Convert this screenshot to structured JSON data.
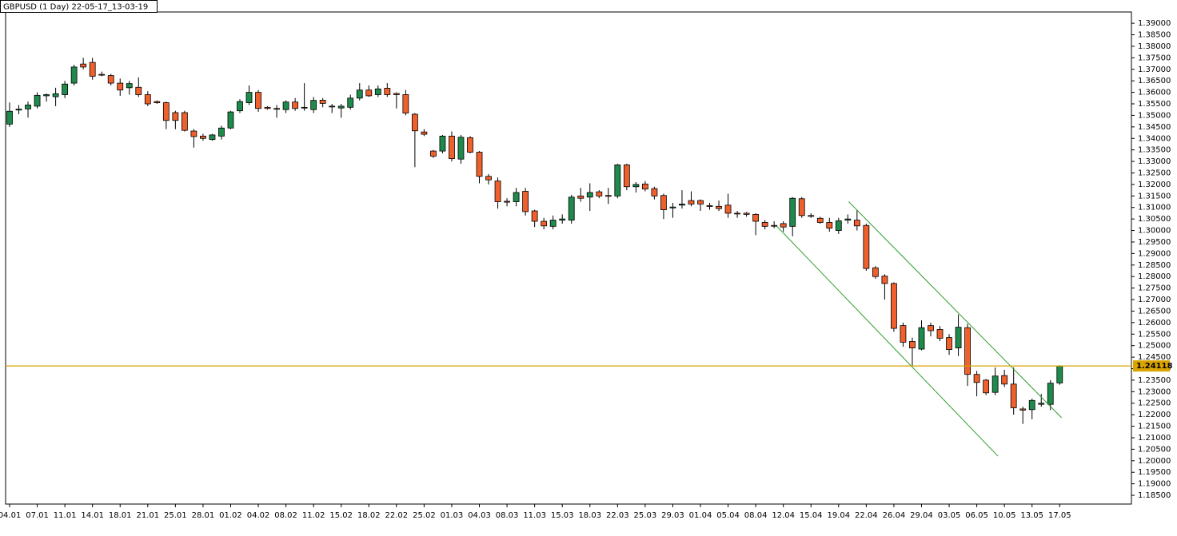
{
  "chart_data": {
    "type": "candlestick",
    "title": "GBPUSD (1 Day) 22-05-17_13-03-19",
    "categories": [
      "04.01",
      null,
      null,
      "07.01",
      null,
      null,
      "11.01",
      null,
      null,
      "14.01",
      null,
      null,
      "18.01",
      null,
      null,
      "21.01",
      null,
      null,
      "25.01",
      null,
      null,
      "28.01",
      null,
      null,
      "01.02",
      null,
      null,
      "04.02",
      null,
      null,
      "08.02",
      null,
      null,
      "11.02",
      null,
      null,
      "15.02",
      null,
      null,
      "18.02",
      null,
      null,
      "22.02",
      null,
      null,
      "25.02",
      null,
      null,
      "01.03",
      null,
      null,
      "04.03",
      null,
      null,
      "08.03",
      null,
      null,
      "11.03",
      null,
      null,
      "15.03",
      null,
      null,
      "18.03",
      null,
      null,
      "22.03",
      null,
      null,
      "25.03",
      null,
      null,
      "29.03",
      null,
      null,
      "01.04",
      null,
      null,
      "05.04",
      null,
      null,
      "08.04",
      null,
      null,
      "12.04",
      null,
      null,
      "15.04",
      null,
      null,
      "19.04",
      null,
      null,
      "22.04",
      null,
      null,
      "26.04",
      null,
      null,
      "29.04",
      null,
      null,
      "03.05",
      null,
      null,
      "06.05",
      null,
      null,
      "10.05",
      null,
      null,
      "13.05",
      null,
      null,
      "17.05"
    ],
    "open": [
      1.3462,
      1.3523,
      1.3528,
      1.354,
      1.3585,
      1.3581,
      1.359,
      1.364,
      1.3723,
      1.373,
      1.3678,
      1.3673,
      1.364,
      1.362,
      1.3622,
      1.359,
      1.356,
      1.3555,
      1.3512,
      1.3512,
      1.3432,
      1.341,
      1.3395,
      1.341,
      1.3445,
      1.352,
      1.3555,
      1.36,
      1.3535,
      1.353,
      1.3525,
      1.3558,
      1.3533,
      1.3525,
      1.3566,
      1.3538,
      1.3532,
      1.3535,
      1.3575,
      1.361,
      1.359,
      1.3618,
      1.3595,
      1.359,
      1.3505,
      1.3428,
      1.3345,
      1.3345,
      1.341,
      1.331,
      1.3403,
      1.334,
      1.3235,
      1.3215,
      1.3127,
      1.3125,
      1.317,
      1.3085,
      1.304,
      1.3018,
      1.3045,
      1.3045,
      1.315,
      1.3145,
      1.3168,
      1.3152,
      1.315,
      1.3285,
      1.319,
      1.3202,
      1.3182,
      1.3152,
      1.3098,
      1.311,
      1.313,
      1.313,
      1.3108,
      1.3105,
      1.311,
      1.3075,
      1.3075,
      1.307,
      1.3035,
      1.3022,
      1.303,
      1.3018,
      1.3138,
      1.3065,
      1.3053,
      1.3035,
      1.3,
      1.3045,
      1.3045,
      1.3022,
      1.2838,
      1.2802,
      1.277,
      1.2587,
      1.2518,
      1.2485,
      1.2587,
      1.257,
      1.2535,
      1.249,
      1.2578,
      1.2375,
      1.235,
      1.2297,
      1.237,
      1.2333,
      1.2225,
      1.2222,
      1.2245,
      1.2245,
      1.2338
    ],
    "high": [
      1.3556,
      1.3545,
      1.356,
      1.36,
      1.3595,
      1.362,
      1.365,
      1.372,
      1.375,
      1.375,
      1.369,
      1.368,
      1.366,
      1.365,
      1.3665,
      1.3605,
      1.3565,
      1.356,
      1.352,
      1.352,
      1.344,
      1.342,
      1.342,
      1.3455,
      1.352,
      1.357,
      1.363,
      1.361,
      1.354,
      1.3545,
      1.3565,
      1.3575,
      1.364,
      1.358,
      1.3575,
      1.355,
      1.355,
      1.359,
      1.364,
      1.363,
      1.363,
      1.364,
      1.36,
      1.361,
      1.351,
      1.344,
      1.335,
      1.3415,
      1.343,
      1.3415,
      1.341,
      1.3345,
      1.3245,
      1.323,
      1.314,
      1.3185,
      1.3185,
      1.309,
      1.3055,
      1.3065,
      1.307,
      1.3155,
      1.3185,
      1.3205,
      1.3175,
      1.3185,
      1.329,
      1.329,
      1.321,
      1.3215,
      1.319,
      1.316,
      1.312,
      1.3175,
      1.317,
      1.3135,
      1.312,
      1.313,
      1.316,
      1.3085,
      1.308,
      1.3075,
      1.3045,
      1.304,
      1.304,
      1.3145,
      1.3145,
      1.3075,
      1.306,
      1.3055,
      1.3055,
      1.307,
      1.309,
      1.303,
      1.2845,
      1.281,
      1.2775,
      1.26,
      1.2535,
      1.261,
      1.26,
      1.2585,
      1.255,
      1.2635,
      1.2595,
      1.239,
      1.2355,
      1.2405,
      1.2395,
      1.2405,
      1.2235,
      1.227,
      1.229,
      1.235,
      1.2415
    ],
    "low": [
      1.345,
      1.3505,
      1.349,
      1.353,
      1.356,
      1.354,
      1.3575,
      1.363,
      1.37,
      1.3655,
      1.367,
      1.363,
      1.3585,
      1.359,
      1.358,
      1.354,
      1.355,
      1.344,
      1.344,
      1.343,
      1.336,
      1.339,
      1.339,
      1.3395,
      1.344,
      1.351,
      1.3545,
      1.3515,
      1.3525,
      1.349,
      1.351,
      1.352,
      1.352,
      1.351,
      1.3535,
      1.351,
      1.349,
      1.3525,
      1.3565,
      1.358,
      1.358,
      1.358,
      1.353,
      1.35,
      1.3275,
      1.341,
      1.3315,
      1.3335,
      1.33,
      1.329,
      1.3335,
      1.3205,
      1.32,
      1.3095,
      1.3105,
      1.3105,
      1.3065,
      1.3015,
      1.3005,
      1.3005,
      1.303,
      1.303,
      1.3125,
      1.3085,
      1.314,
      1.3115,
      1.314,
      1.3175,
      1.3165,
      1.317,
      1.3135,
      1.305,
      1.3055,
      1.3095,
      1.3105,
      1.3085,
      1.309,
      1.3085,
      1.3055,
      1.3055,
      1.306,
      1.298,
      1.3005,
      1.301,
      1.2995,
      1.2975,
      1.3055,
      1.3055,
      1.303,
      1.2995,
      1.2985,
      1.303,
      1.3,
      1.2825,
      1.279,
      1.27,
      1.256,
      1.2495,
      1.241,
      1.248,
      1.254,
      1.252,
      1.246,
      1.2455,
      1.2325,
      1.228,
      1.2285,
      1.2285,
      1.232,
      1.22,
      1.216,
      1.218,
      1.2235,
      1.222,
      1.233
    ],
    "close": [
      1.3518,
      1.3527,
      1.3545,
      1.3587,
      1.359,
      1.3594,
      1.3636,
      1.371,
      1.371,
      1.367,
      1.3676,
      1.364,
      1.361,
      1.3638,
      1.359,
      1.355,
      1.3555,
      1.3478,
      1.3478,
      1.3435,
      1.3408,
      1.34,
      1.3415,
      1.3445,
      1.3515,
      1.356,
      1.36,
      1.353,
      1.353,
      1.3528,
      1.3558,
      1.353,
      1.3535,
      1.3565,
      1.3552,
      1.354,
      1.354,
      1.3575,
      1.361,
      1.3585,
      1.3615,
      1.359,
      1.359,
      1.351,
      1.3433,
      1.3418,
      1.3323,
      1.341,
      1.3312,
      1.3405,
      1.334,
      1.3235,
      1.322,
      1.3125,
      1.3123,
      1.3165,
      1.3082,
      1.304,
      1.302,
      1.3045,
      1.305,
      1.3145,
      1.314,
      1.3165,
      1.315,
      1.315,
      1.3285,
      1.319,
      1.32,
      1.318,
      1.315,
      1.309,
      1.3102,
      1.3115,
      1.3115,
      1.3115,
      1.3105,
      1.3095,
      1.3075,
      1.3072,
      1.307,
      1.304,
      1.3018,
      1.302,
      1.3015,
      1.314,
      1.3065,
      1.3063,
      1.3035,
      1.301,
      1.3042,
      1.305,
      1.302,
      1.2835,
      1.28,
      1.277,
      1.2575,
      1.2515,
      1.249,
      1.2578,
      1.2565,
      1.2532,
      1.2483,
      1.258,
      1.2375,
      1.234,
      1.2295,
      1.2368,
      1.2333,
      1.223,
      1.222,
      1.2262,
      1.225,
      1.2337,
      1.2412
    ],
    "up_color": "#1e8a4c",
    "down_color": "#f0602c",
    "current_price": 1.24118,
    "current_price_color": "#d9a400",
    "trendline_color": "#2e9e2e",
    "trendlines": [
      {
        "x": [
          91.1,
          114.2
        ],
        "y": [
          1.3125,
          1.2187
        ]
      },
      {
        "x": [
          83.3,
          107.3
        ],
        "y": [
          1.3018,
          1.202
        ]
      }
    ],
    "ylim": [
      1.1812,
      1.3949
    ],
    "yticks": [
      {
        "value": 1.185,
        "label": "1.18500"
      },
      {
        "value": 1.19,
        "label": "1.19000"
      },
      {
        "value": 1.195,
        "label": "1.19500"
      },
      {
        "value": 1.2,
        "label": "1.20000"
      },
      {
        "value": 1.205,
        "label": "1.20500"
      },
      {
        "value": 1.21,
        "label": "1.21000"
      },
      {
        "value": 1.215,
        "label": "1.21500"
      },
      {
        "value": 1.22,
        "label": "1.22000"
      },
      {
        "value": 1.225,
        "label": "1.22500"
      },
      {
        "value": 1.23,
        "label": "1.23000"
      },
      {
        "value": 1.235,
        "label": "1.23500"
      },
      {
        "value": 1.24,
        "label": "1.24000"
      },
      {
        "value": 1.245,
        "label": "1.24500"
      },
      {
        "value": 1.25,
        "label": "1.25000"
      },
      {
        "value": 1.255,
        "label": "1.25500"
      },
      {
        "value": 1.26,
        "label": "1.26000"
      },
      {
        "value": 1.265,
        "label": "1.26500"
      },
      {
        "value": 1.27,
        "label": "1.27000"
      },
      {
        "value": 1.275,
        "label": "1.27500"
      },
      {
        "value": 1.28,
        "label": "1.28000"
      },
      {
        "value": 1.285,
        "label": "1.28500"
      },
      {
        "value": 1.29,
        "label": "1.29000"
      },
      {
        "value": 1.295,
        "label": "1.29500"
      },
      {
        "value": 1.3,
        "label": "1.30000"
      },
      {
        "value": 1.305,
        "label": "1.30500"
      },
      {
        "value": 1.31,
        "label": "1.31000"
      },
      {
        "value": 1.315,
        "label": "1.31500"
      },
      {
        "value": 1.32,
        "label": "1.32000"
      },
      {
        "value": 1.325,
        "label": "1.32500"
      },
      {
        "value": 1.33,
        "label": "1.33000"
      },
      {
        "value": 1.335,
        "label": "1.33500"
      },
      {
        "value": 1.34,
        "label": "1.34000"
      },
      {
        "value": 1.345,
        "label": "1.34500"
      },
      {
        "value": 1.35,
        "label": "1.35000"
      },
      {
        "value": 1.355,
        "label": "1.35500"
      },
      {
        "value": 1.36,
        "label": "1.36000"
      },
      {
        "value": 1.365,
        "label": "1.36500"
      },
      {
        "value": 1.37,
        "label": "1.37000"
      },
      {
        "value": 1.375,
        "label": "1.37500"
      },
      {
        "value": 1.38,
        "label": "1.38000"
      },
      {
        "value": 1.385,
        "label": "1.38500"
      },
      {
        "value": 1.39,
        "label": "1.39000"
      }
    ],
    "grid": false
  }
}
